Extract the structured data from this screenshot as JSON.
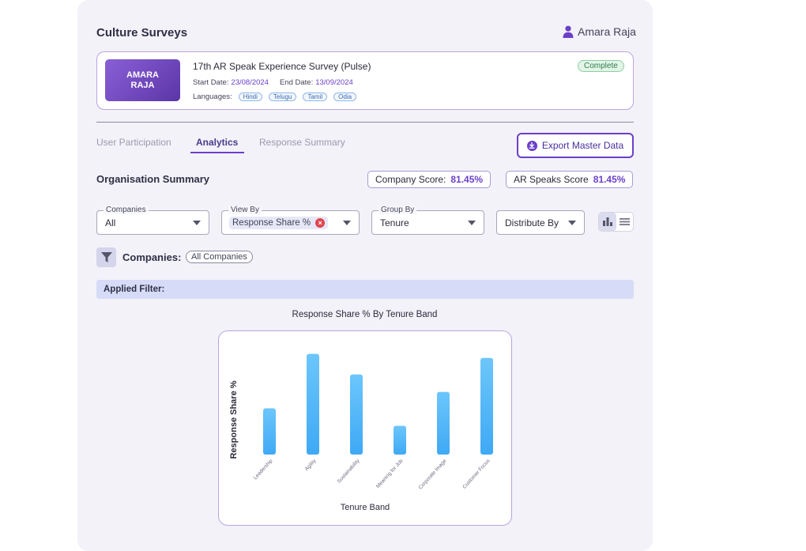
{
  "header": {
    "title": "Culture Surveys",
    "user_name": "Amara Raja"
  },
  "survey": {
    "logo_text": "AMARA RAJA",
    "name": "17th AR Speak Experience Survey (Pulse)",
    "start_label": "Start Date:",
    "start_date": "23/08/2024",
    "end_label": "End Date:",
    "end_date": "13/09/2024",
    "languages_label": "Languages:",
    "languages": [
      "Hindi",
      "Telugu",
      "Tamil",
      "Odia"
    ],
    "status": "Complete"
  },
  "tabs": [
    {
      "label": "User Participation",
      "active": false
    },
    {
      "label": "Analytics",
      "active": true
    },
    {
      "label": "Response Summary",
      "active": false
    }
  ],
  "export_label": "Export Master Data",
  "summary": {
    "title": "Organisation Summary",
    "company_score_label": "Company Score:",
    "company_score": "81.45%",
    "ar_score_label": "AR Speaks Score",
    "ar_score": "81.45%"
  },
  "filters": {
    "companies": {
      "legend": "Companies",
      "value": "All"
    },
    "view_by": {
      "legend": "View By",
      "chip": "Response Share %"
    },
    "group_by": {
      "legend": "Group By",
      "value": "Tenure"
    },
    "distribute_by": {
      "value": "Distribute By"
    }
  },
  "companies_row": {
    "label": "Companies:",
    "chip": "All Companies"
  },
  "applied_filter_label": "Applied Filter:",
  "colors": {
    "accent": "#6b3fc9",
    "bar_top": "#6cc6fb",
    "bar_bottom": "#3fa9f5"
  },
  "chart_data": {
    "type": "bar",
    "title": "Response Share % By Tenure Band",
    "xlabel": "Tenure Band",
    "ylabel": "Response Share %",
    "categories": [
      "Leadership",
      "Agility",
      "Sustainability",
      "Meaning for Job",
      "Corporate Image",
      "Customer Focus"
    ],
    "values": [
      45,
      98,
      78,
      28,
      61,
      94
    ],
    "ylim": [
      0,
      100
    ],
    "grid": false
  }
}
